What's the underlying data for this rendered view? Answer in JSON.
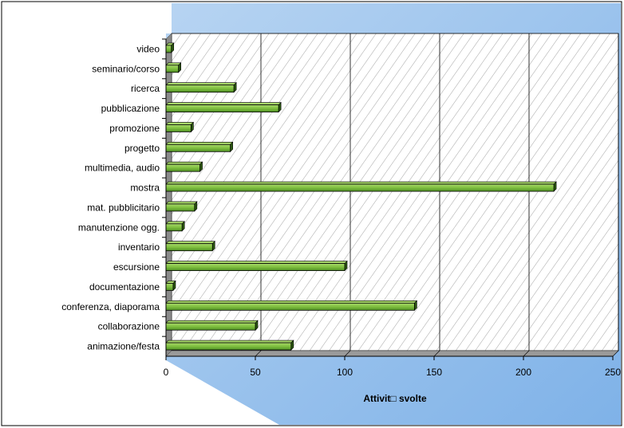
{
  "chart_data": {
    "type": "bar",
    "orientation": "horizontal",
    "categories": [
      "video",
      "seminario/corso",
      "ricerca",
      "pubblicazione",
      "promozione",
      "progetto",
      "multimedia, audio",
      "mostra",
      "mat. pubblicitario",
      "manutenzione ogg.",
      "inventario",
      "escursione",
      "documentazione",
      "conferenza, diaporama",
      "collaborazione",
      "animazione/festa"
    ],
    "values": [
      3,
      7,
      38,
      63,
      14,
      36,
      19,
      217,
      16,
      9,
      26,
      100,
      4,
      139,
      50,
      70
    ],
    "xlabel": "Attivit□ svolte",
    "xlim": [
      0,
      250
    ],
    "xticks": [
      0,
      50,
      100,
      150,
      200,
      250
    ],
    "grid": true,
    "legend": "none",
    "colors": {
      "bar_fill": "#7fbf3f",
      "bar_top": "#a8d86a",
      "bar_side": "#2d5a12",
      "bar_outline": "#000000",
      "plot_back": "#ffffff",
      "background_gradient_start": "#b7d4f2",
      "background_gradient_end": "#7fb2e8",
      "wall": "#888888"
    }
  }
}
